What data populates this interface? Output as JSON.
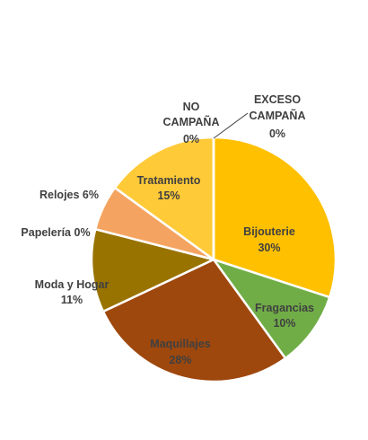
{
  "chart_data": {
    "type": "pie",
    "title": "",
    "slices": [
      {
        "label": "Bijouterie",
        "pct_label": "30%",
        "value": 30,
        "color": "#FFC000",
        "label_color": "#404040"
      },
      {
        "label": "Fragancias",
        "pct_label": "10%",
        "value": 10,
        "color": "#70AD47",
        "label_color": "#404040"
      },
      {
        "label": "Maquillajes",
        "pct_label": "28%",
        "value": 28,
        "color": "#9E480E",
        "label_color": "#404040"
      },
      {
        "label": "Moda y Hogar",
        "pct_label": "11%",
        "value": 11,
        "color": "#997300",
        "label_color": "#404040"
      },
      {
        "label": "Papelería",
        "pct_label": "0%",
        "value": 0.001,
        "color": "#636363",
        "label_color": "#404040"
      },
      {
        "label": "Relojes",
        "pct_label": "6%",
        "value": 6,
        "color": "#F4A460",
        "label_color": "#404040"
      },
      {
        "label": "Tratamiento",
        "pct_label": "15%",
        "value": 15,
        "color": "#FFCA38",
        "label_color": "#404040"
      },
      {
        "label": "NO CAMPAÑA",
        "pct_label": "0%",
        "value": 0.001,
        "color": "#A5A5A5",
        "label_color": "#404040"
      },
      {
        "label": "EXCESO CAMPAÑA",
        "pct_label": "0%",
        "value": 0.001,
        "color": "#5B9BD5",
        "label_color": "#404040"
      }
    ],
    "labels": {
      "bijouterie": {
        "name": "Bijouterie",
        "pct": "30%"
      },
      "fragancias": {
        "name": "Fragancias",
        "pct": "10%"
      },
      "maquillajes": {
        "name": "Maquillajes",
        "pct": "28%"
      },
      "moda": {
        "name": "Moda y Hogar",
        "pct": "11%"
      },
      "papeleria": {
        "text": "Papelería 0%"
      },
      "relojes": {
        "text": "Relojes 6%"
      },
      "tratamiento": {
        "name": "Tratamiento",
        "pct": "15%"
      },
      "no_campana": {
        "line1": "NO",
        "line2": "CAMPAÑA",
        "pct": "0%"
      },
      "exceso_campana": {
        "line1": "EXCESO",
        "line2": "CAMPAÑA",
        "pct": "0%"
      }
    }
  }
}
